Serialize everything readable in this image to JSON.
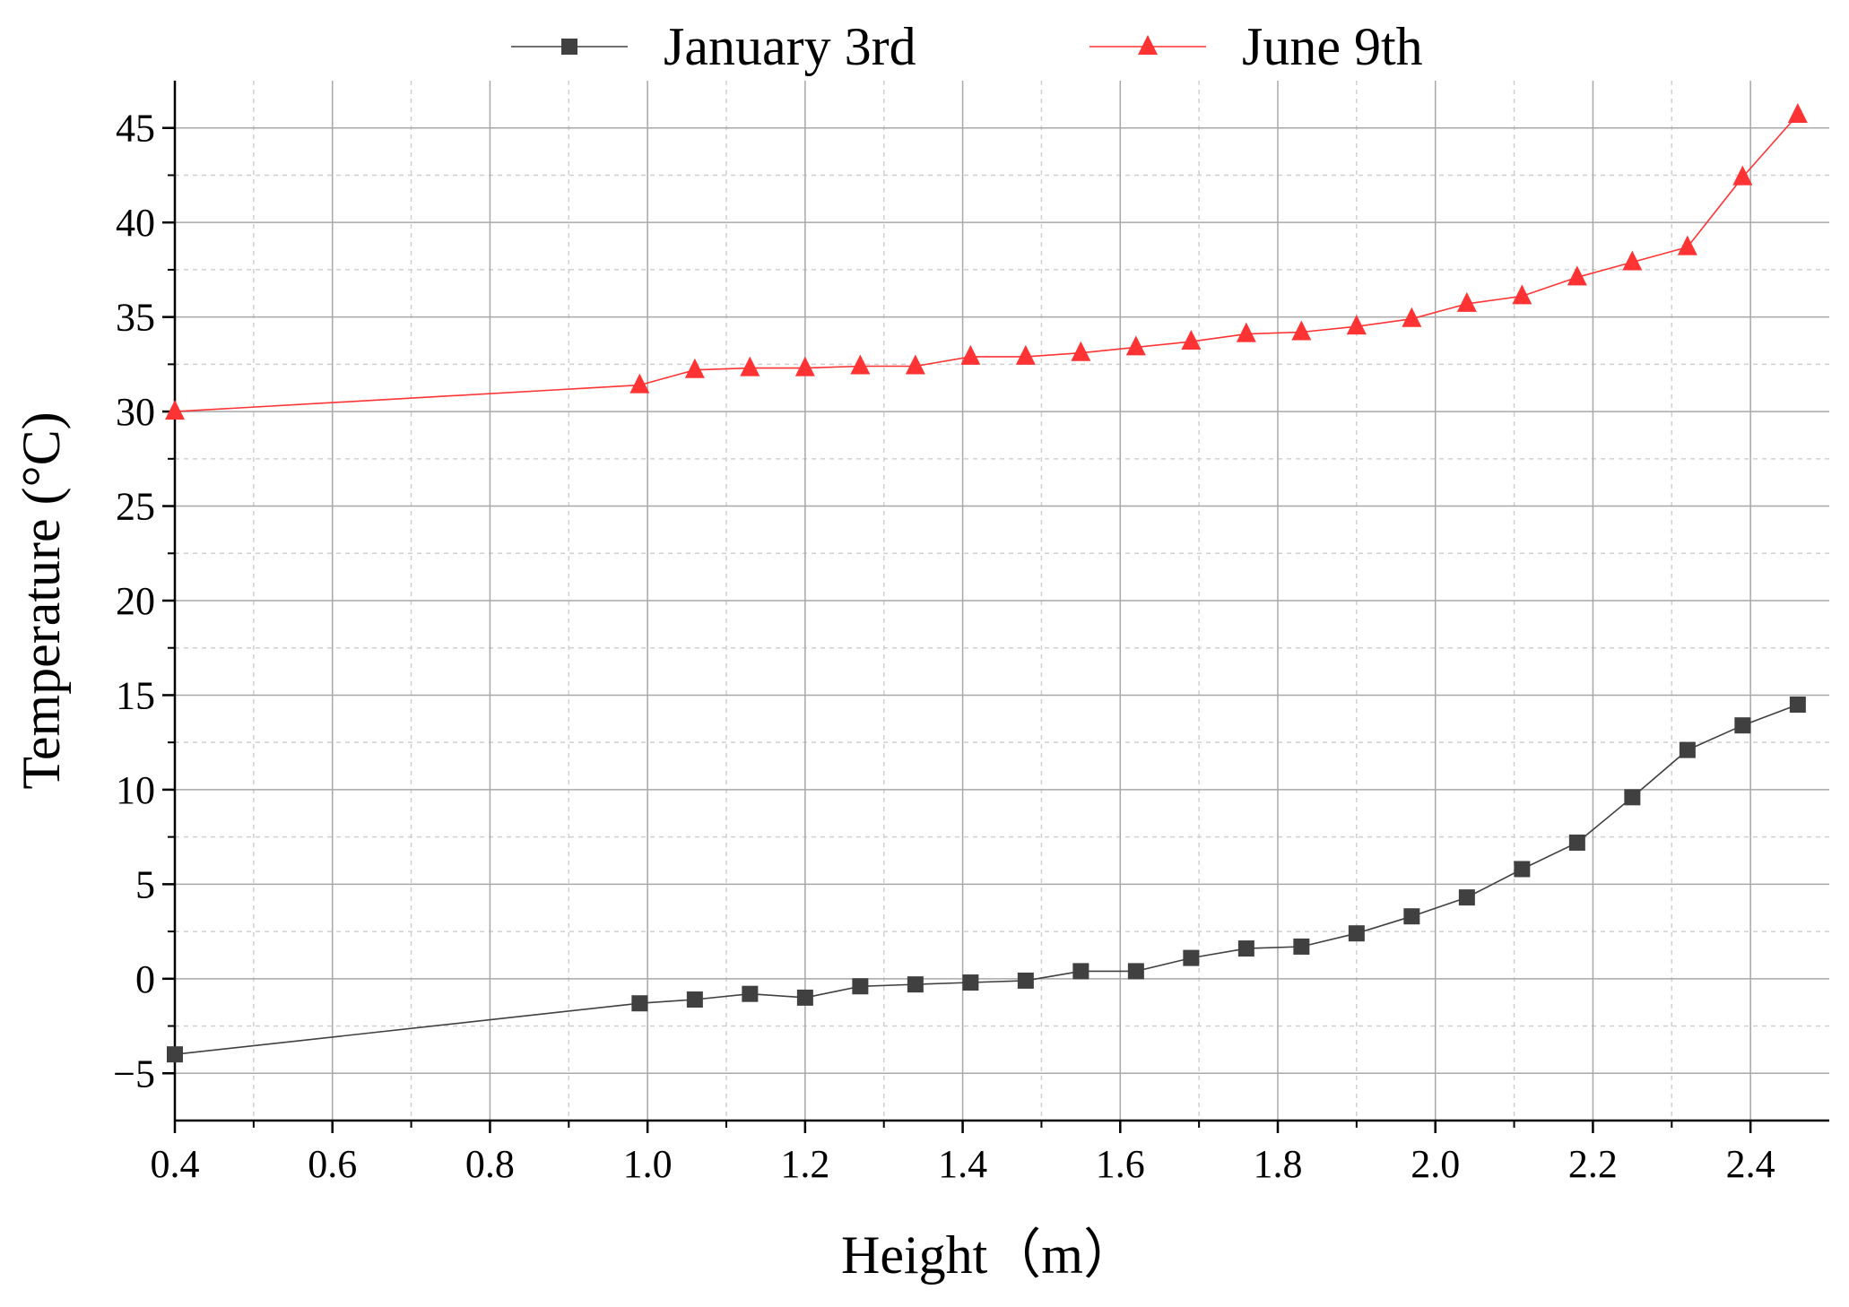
{
  "chart_data": {
    "type": "line",
    "xlabel": "Height（m）",
    "ylabel": "Temperature (°C)",
    "xlim": [
      0.4,
      2.5
    ],
    "ylim": [
      -7.5,
      47.5
    ],
    "x_ticks": [
      0.4,
      0.6,
      0.8,
      1.0,
      1.2,
      1.4,
      1.6,
      1.8,
      2.0,
      2.2,
      2.4
    ],
    "x_tick_labels": [
      "0.4",
      "0.6",
      "0.8",
      "1.0",
      "1.2",
      "1.4",
      "1.6",
      "1.8",
      "2.0",
      "2.2",
      "2.4"
    ],
    "y_ticks": [
      -5,
      0,
      5,
      10,
      15,
      20,
      25,
      30,
      35,
      40,
      45
    ],
    "y_tick_labels": [
      "−5",
      "0",
      "5",
      "10",
      "15",
      "20",
      "25",
      "30",
      "35",
      "40",
      "45"
    ],
    "grid": true,
    "legend_position": "top-center",
    "series": [
      {
        "name": "January 3rd",
        "color": "#404040",
        "marker": "square",
        "points": [
          [
            0.4,
            -4.0
          ],
          [
            0.99,
            -1.3
          ],
          [
            1.06,
            -1.1
          ],
          [
            1.13,
            -0.8
          ],
          [
            1.2,
            -1.0
          ],
          [
            1.27,
            -0.4
          ],
          [
            1.34,
            -0.3
          ],
          [
            1.41,
            -0.2
          ],
          [
            1.48,
            -0.1
          ],
          [
            1.55,
            0.4
          ],
          [
            1.62,
            0.4
          ],
          [
            1.69,
            1.1
          ],
          [
            1.76,
            1.6
          ],
          [
            1.83,
            1.7
          ],
          [
            1.9,
            2.4
          ],
          [
            1.97,
            3.3
          ],
          [
            2.04,
            4.3
          ],
          [
            2.11,
            5.8
          ],
          [
            2.18,
            7.2
          ],
          [
            2.25,
            9.6
          ],
          [
            2.32,
            12.1
          ],
          [
            2.39,
            13.4
          ],
          [
            2.46,
            14.5
          ]
        ]
      },
      {
        "name": "June 9th",
        "color": "#ff3333",
        "marker": "triangle",
        "points": [
          [
            0.4,
            30.0
          ],
          [
            0.99,
            31.4
          ],
          [
            1.06,
            32.2
          ],
          [
            1.13,
            32.3
          ],
          [
            1.2,
            32.3
          ],
          [
            1.27,
            32.4
          ],
          [
            1.34,
            32.4
          ],
          [
            1.41,
            32.9
          ],
          [
            1.48,
            32.9
          ],
          [
            1.55,
            33.1
          ],
          [
            1.62,
            33.4
          ],
          [
            1.69,
            33.7
          ],
          [
            1.76,
            34.1
          ],
          [
            1.83,
            34.2
          ],
          [
            1.9,
            34.5
          ],
          [
            1.97,
            34.9
          ],
          [
            2.04,
            35.7
          ],
          [
            2.11,
            36.1
          ],
          [
            2.18,
            37.1
          ],
          [
            2.25,
            37.9
          ],
          [
            2.32,
            38.7
          ],
          [
            2.39,
            42.4
          ],
          [
            2.46,
            45.7
          ]
        ]
      }
    ]
  }
}
